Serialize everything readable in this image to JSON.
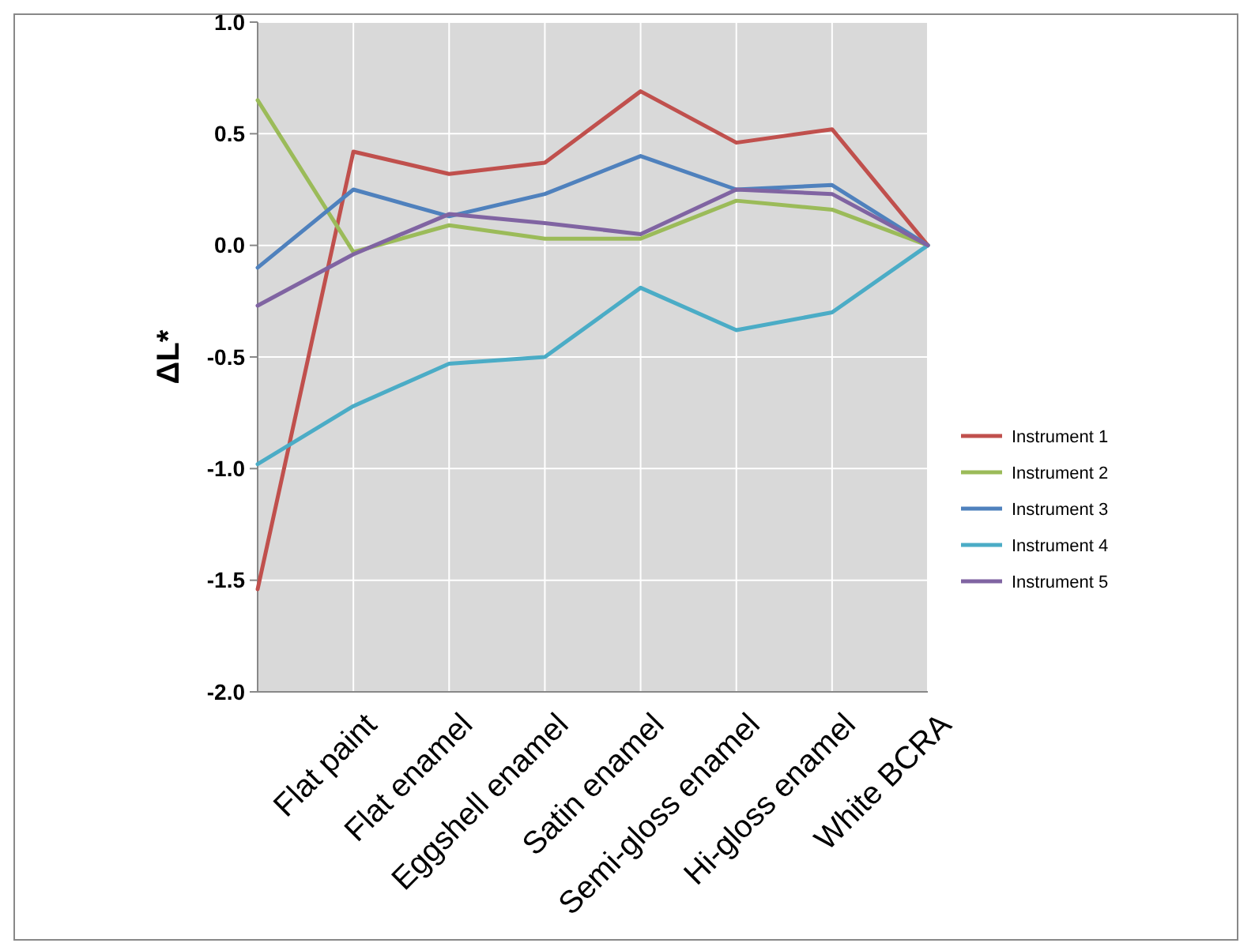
{
  "chart_data": {
    "type": "line",
    "ylabel": "ΔL*",
    "categories": [
      null,
      "Flat paint",
      "Flat enamel",
      "Eggshell enamel",
      "Satin enamel",
      "Semi-gloss enamel",
      "Hi-gloss enamel",
      "White BCRA"
    ],
    "series": [
      {
        "name": "Instrument 1",
        "color": "#c0504d",
        "values": [
          -1.54,
          0.42,
          0.32,
          0.37,
          0.69,
          0.46,
          0.52,
          0
        ]
      },
      {
        "name": "Instrument 2",
        "color": "#9bbb59",
        "values": [
          0.65,
          -0.03,
          0.09,
          0.03,
          0.03,
          0.2,
          0.16,
          0
        ]
      },
      {
        "name": "Instrument 3",
        "color": "#4f81bd",
        "values": [
          -0.1,
          0.25,
          0.13,
          0.23,
          0.4,
          0.25,
          0.27,
          0
        ]
      },
      {
        "name": "Instrument 4",
        "color": "#4bacc6",
        "values": [
          -0.98,
          -0.72,
          -0.53,
          -0.5,
          -0.19,
          -0.38,
          -0.3,
          0
        ]
      },
      {
        "name": "Instrument 5",
        "color": "#8064a2",
        "values": [
          -0.27,
          -0.04,
          0.14,
          0.1,
          0.05,
          0.25,
          0.23,
          0
        ]
      }
    ],
    "ylim": [
      -2,
      1
    ],
    "yticks": [
      {
        "value": -2,
        "label": "-2.0"
      },
      {
        "value": -1.5,
        "label": "-1.5"
      },
      {
        "value": -1,
        "label": "-1.0"
      },
      {
        "value": -0.5,
        "label": "-0.5"
      },
      {
        "value": 0,
        "label": "0.0"
      },
      {
        "value": 0.5,
        "label": "0.5"
      },
      {
        "value": 1,
        "label": "1.0"
      }
    ],
    "grid": true,
    "legend": "right",
    "marker": "none"
  }
}
